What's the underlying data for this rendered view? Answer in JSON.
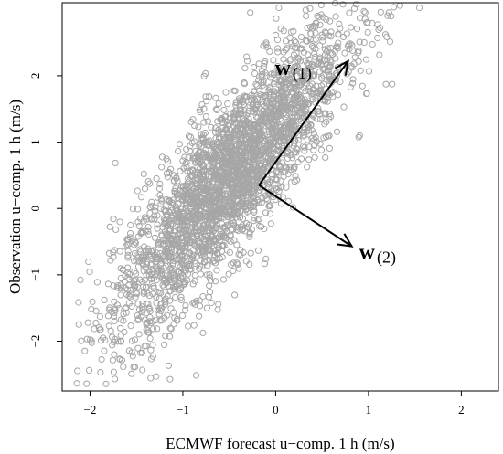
{
  "chart_data": {
    "type": "scatter",
    "xlabel": "ECMWF forecast u−comp. 1 h (m/s)",
    "ylabel": "Observation u−comp. 1 h (m/s)",
    "xlim": [
      -2.3,
      2.4
    ],
    "ylim": [
      -2.75,
      3.1
    ],
    "x_ticks": [
      -2,
      -1,
      0,
      1,
      2
    ],
    "y_ticks": [
      -2,
      -1,
      0,
      1,
      2
    ],
    "x_tick_labels": [
      "−2",
      "−1",
      "0",
      "1",
      "2"
    ],
    "y_tick_labels": [
      "−2",
      "−1",
      "0",
      "1",
      "2"
    ],
    "grid": false,
    "point_color": "#a6a6a6",
    "point_style": "open-circle",
    "scatter_distribution": {
      "n_points": 3000,
      "x_mean": -0.5,
      "x_sd": 0.62,
      "slope": 1.55,
      "residual_sd": 0.6,
      "x_range": [
        -2.2,
        1.75
      ],
      "y_range": [
        -2.7,
        3.1
      ]
    },
    "vectors": [
      {
        "name": "w(1)",
        "label_main": "w",
        "label_sub": "(1)",
        "origin": [
          -0.18,
          0.35
        ],
        "end": [
          0.78,
          2.22
        ]
      },
      {
        "name": "w(2)",
        "label_main": "w",
        "label_sub": "(2)",
        "origin": [
          -0.18,
          0.35
        ],
        "end": [
          0.82,
          -0.57
        ]
      }
    ]
  }
}
